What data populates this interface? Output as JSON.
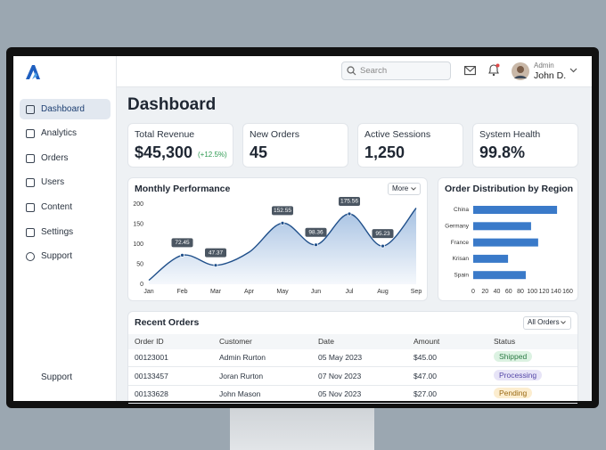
{
  "sidebar": {
    "items": [
      "Dashboard",
      "Analytics",
      "Orders",
      "Users",
      "Content",
      "Settings",
      "Support"
    ],
    "footer": "Support"
  },
  "header": {
    "search": "Search",
    "role": "Admin",
    "user": "John D."
  },
  "page_title": "Dashboard",
  "kpis": [
    {
      "label": "Total Revenue",
      "value": "$45,300",
      "change": "(+12.5%)"
    },
    {
      "label": "New Orders",
      "value": "45"
    },
    {
      "label": "Active Sessions",
      "value": "1,250"
    },
    {
      "label": "System Health",
      "value": "99.8%"
    }
  ],
  "chart_data": [
    {
      "type": "line",
      "title": "Monthly Performance",
      "button": "More",
      "categories": [
        "Jan",
        "Feb",
        "Mar",
        "Apr",
        "May",
        "Jun",
        "Jul",
        "Aug",
        "Sep"
      ],
      "values": [
        10,
        72.45,
        47.37,
        80,
        152.55,
        98.36,
        175.56,
        95.23,
        190
      ],
      "value_labels": [
        null,
        "72.45",
        "47.37",
        null,
        "152.55",
        "98.36",
        "175.56",
        "95.23",
        null
      ],
      "color": "#3a76bf",
      "ylim": [
        0,
        200
      ],
      "yticks": [
        0,
        50,
        100,
        150,
        200
      ]
    },
    {
      "type": "bar",
      "orientation": "horizontal",
      "title": "Order Distribution by Region",
      "categories": [
        "China",
        "Germany",
        "France",
        "Krisan",
        "Spain"
      ],
      "values": [
        142,
        98,
        110,
        59,
        89
      ],
      "color": "#3a7ac9",
      "xlim": [
        0,
        160
      ],
      "xticks": [
        0,
        20,
        40,
        60,
        80,
        100,
        120,
        140,
        160
      ]
    }
  ],
  "orders": {
    "title": "Recent Orders",
    "filter": "All Orders",
    "columns": [
      "Order ID",
      "Customer",
      "Date",
      "Amount",
      "Status"
    ],
    "rows": [
      [
        "00123001",
        "Admin Rurton",
        "05 May 2023",
        "$45.00",
        "Shipped"
      ],
      [
        "00133457",
        "Joran Rurton",
        "07 Nov 2023",
        "$47.00",
        "Processing"
      ],
      [
        "00133628",
        "John Mason",
        "05 Nov 2023",
        "$27.00",
        "Pending"
      ]
    ]
  }
}
